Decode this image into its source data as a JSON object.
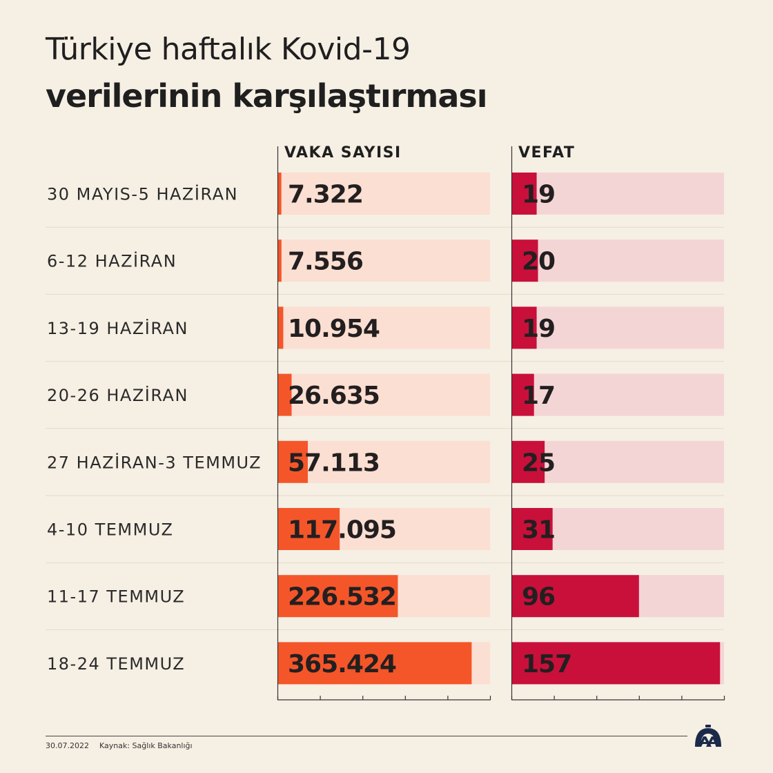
{
  "title_line1": "Türkiye haftalık Kovid-19",
  "title_line2": "verilerinin karşılaştırması",
  "footer": {
    "date": "30.07.2022",
    "source": "Kaynak: Sağlık Bakanlığı"
  },
  "logo_icon": "aa-logo-icon",
  "colors": {
    "background": "#f6efe4",
    "vaka_bar": "#f4562a",
    "vaka_track": "#fbdfd2",
    "vefat_bar": "#c8103a",
    "vefat_track": "#f4d5d6"
  },
  "chart_data": {
    "type": "bar",
    "categories": [
      "30 MAYIS-5 HAZİRAN",
      "6-12 HAZİRAN",
      "13-19 HAZİRAN",
      "20-26 HAZİRAN",
      "27 HAZİRAN-3 TEMMUZ",
      "4-10 TEMMUZ",
      "11-17 TEMMUZ",
      "18-24 TEMMUZ"
    ],
    "series": [
      {
        "name": "VAKA SAYISI",
        "values": [
          7322,
          7556,
          10954,
          26635,
          57113,
          117095,
          226532,
          365424
        ],
        "labels": [
          "7.322",
          "7.556",
          "10.954",
          "26.635",
          "57.113",
          "117.095",
          "226.532",
          "365.424"
        ],
        "xlim": [
          0,
          400000
        ]
      },
      {
        "name": "VEFAT",
        "values": [
          19,
          20,
          19,
          17,
          25,
          31,
          96,
          157
        ],
        "labels": [
          "19",
          "20",
          "19",
          "17",
          "25",
          "31",
          "96",
          "157"
        ],
        "xlim": [
          0,
          160
        ]
      }
    ]
  }
}
